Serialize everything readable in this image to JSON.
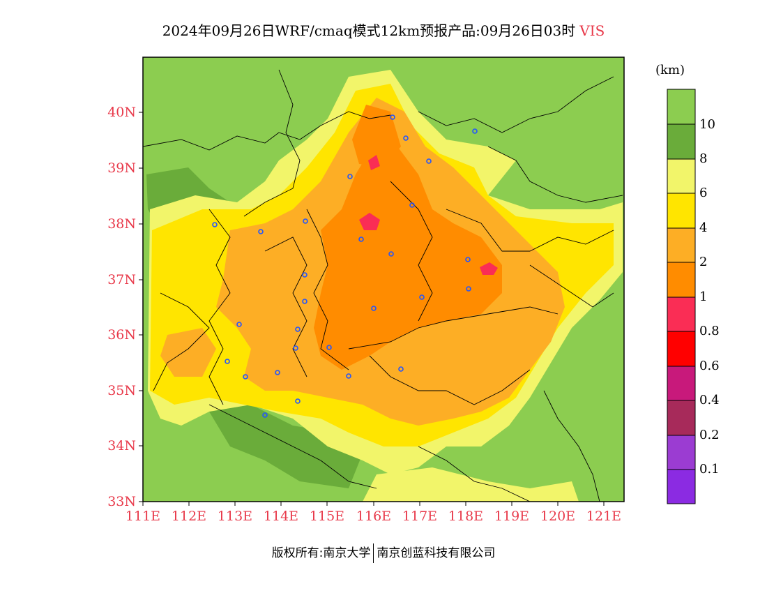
{
  "header": {
    "title": "2024年09月26日WRF/cmaq模式12km预报产品:09月26日03时",
    "variable": "VIS"
  },
  "axes": {
    "lat_labels": [
      "40N",
      "39N",
      "38N",
      "37N",
      "36N",
      "35N",
      "34N",
      "33N"
    ],
    "lon_labels": [
      "111E",
      "112E",
      "113E",
      "114E",
      "115E",
      "116E",
      "117E",
      "118E",
      "119E",
      "120E",
      "121E"
    ]
  },
  "colorbar": {
    "unit": "(km)",
    "labels": [
      "10",
      "8",
      "6",
      "4",
      "2",
      "1",
      "0.8",
      "0.6",
      "0.4",
      "0.2",
      "0.1"
    ],
    "colors": [
      "#8ccd50",
      "#6aac3a",
      "#f2f56a",
      "#ffe500",
      "#fdae25",
      "#ff8c00",
      "#fa2d55",
      "#ff0000",
      "#c8197b",
      "#a72a5a",
      "#9b3cd2",
      "#8b2be2"
    ]
  },
  "footer": {
    "left": "版权所有:南京大学",
    "right": "南京创蓝科技有限公司"
  },
  "chart_data": {
    "type": "heatmap",
    "title": "2024年09月26日WRF/cmaq模式12km预报产品:09月26日03时",
    "variable": "VIS",
    "unit": "km",
    "lon_range": [
      111,
      121.4
    ],
    "lat_range": [
      33,
      41
    ],
    "legend_thresholds_km": [
      0.1,
      0.2,
      0.4,
      0.6,
      0.8,
      1,
      2,
      4,
      6,
      8,
      10
    ],
    "legend_placement": "right"
  }
}
